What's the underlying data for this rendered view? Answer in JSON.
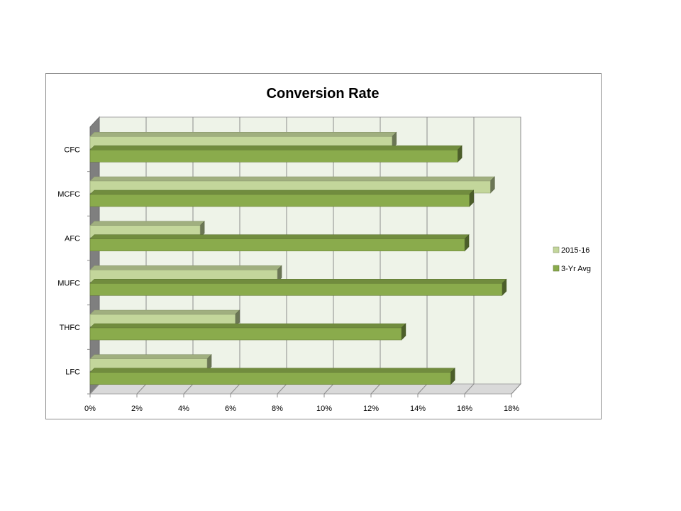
{
  "chart_data": {
    "type": "bar",
    "orientation": "horizontal",
    "three_d": true,
    "title": "Conversion Rate",
    "xlabel": "",
    "ylabel": "",
    "categories": [
      "LFC",
      "THFC",
      "MUFC",
      "AFC",
      "MCFC",
      "CFC"
    ],
    "series": [
      {
        "name": "2015-16",
        "values": [
          5.0,
          6.2,
          8.0,
          4.7,
          17.1,
          12.9
        ],
        "color": "#c3d69b"
      },
      {
        "name": "3-Yr Avg",
        "values": [
          15.4,
          13.3,
          17.6,
          16.0,
          16.2,
          15.7
        ],
        "color": "#8aab4c"
      }
    ],
    "xlim": [
      0,
      18
    ],
    "x_ticks": [
      0,
      2,
      4,
      6,
      8,
      10,
      12,
      14,
      16,
      18
    ],
    "x_tick_labels": [
      "0%",
      "2%",
      "4%",
      "6%",
      "8%",
      "10%",
      "12%",
      "14%",
      "16%",
      "18%"
    ],
    "grid": true,
    "legend_position": "right"
  }
}
